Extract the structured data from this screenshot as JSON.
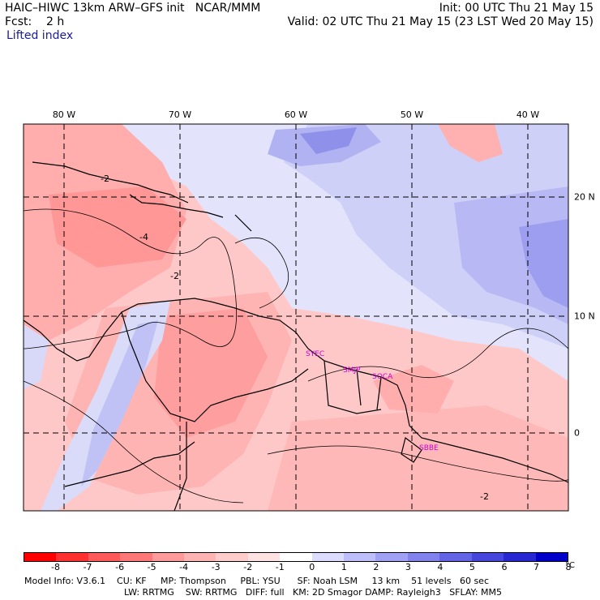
{
  "header": {
    "model": "HAIC–HIWC 13km ARW–GFS init   NCAR/MMM",
    "forecast": "Fcst:    2 h",
    "variable": "Lifted index",
    "init": "Init: 00 UTC Thu 21 May 15",
    "valid": "Valid: 02 UTC Thu 21 May 15 (23 LST Wed 20 May 15)"
  },
  "map": {
    "lon_labels": [
      "80 W",
      "70 W",
      "60 W",
      "50 W",
      "40 W"
    ],
    "lat_labels": [
      "20 N",
      "10 N",
      "0"
    ],
    "stations": [
      "SYEC",
      "SMJP",
      "SOCA",
      "SBBE"
    ],
    "contour_labels": [
      "-2",
      "-4",
      "-2",
      "-2"
    ]
  },
  "colorbar": {
    "ticks": [
      "-8",
      "-7",
      "-6",
      "-5",
      "-4",
      "-3",
      "-2",
      "-1",
      "0",
      "1",
      "2",
      "3",
      "4",
      "5",
      "6",
      "7",
      "8"
    ],
    "unit": "°C",
    "colors": [
      "#ff0000",
      "#ff3030",
      "#ff5a5a",
      "#ff7878",
      "#ff9a9a",
      "#ffb4b4",
      "#ffcccc",
      "#ffe2e2",
      "#ffffff",
      "#dcdcff",
      "#bebefb",
      "#a0a0f5",
      "#8282ef",
      "#6464e6",
      "#4646dc",
      "#2828d2",
      "#0000c8"
    ]
  },
  "footer": {
    "line1": "Model Info: V3.6.1    CU: KF     MP: Thompson     PBL: YSU      SF: Noah LSM     13 km    51 levels   60 sec",
    "line2": "LW: RRTMG    SW: RRTMG   DIFF: full   KM: 2D Smagor DAMP: Rayleigh3   SFLAY: MM5"
  }
}
